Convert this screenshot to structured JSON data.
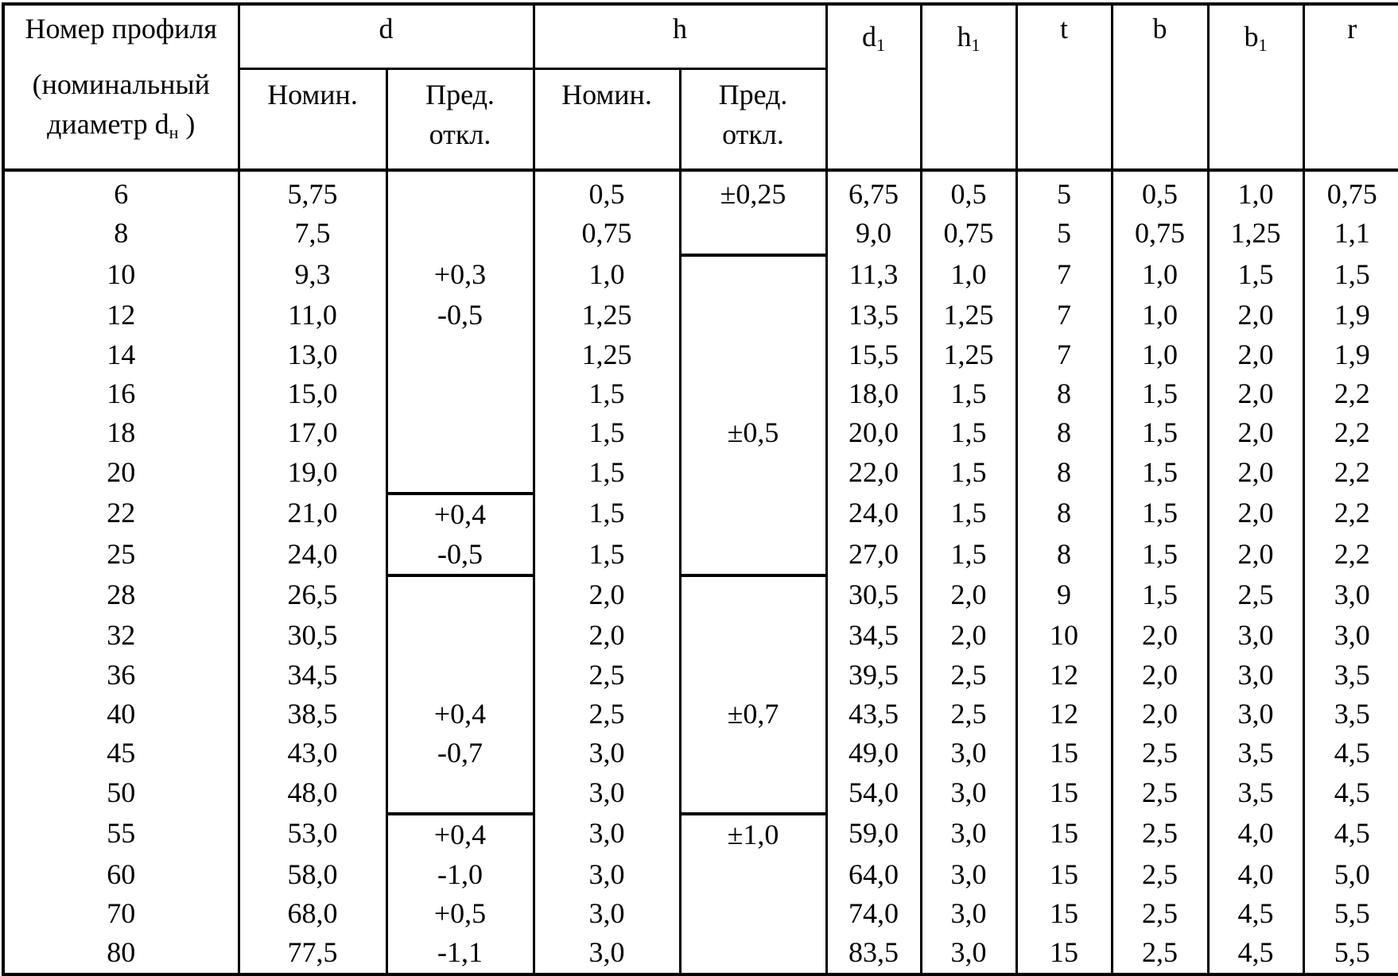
{
  "header": {
    "profile_line1": "Номер профиля",
    "profile_line2": "(номинальный",
    "profile_line3": "диаметр d",
    "profile_sub": "н",
    "profile_close": ")",
    "d": "d",
    "h": "h",
    "d1": "d",
    "h1": "h",
    "t": "t",
    "b": "b",
    "b1": "b",
    "r": "r",
    "sub1": "1",
    "nomin": "Номин.",
    "pred_line1": "Пред.",
    "pred_line2": "откл."
  },
  "rows": [
    [
      "6",
      "5,75",
      "",
      "0,5",
      "±0,25",
      "6,75",
      "0,5",
      "5",
      "0,5",
      "1,0",
      "0,75"
    ],
    [
      "8",
      "7,5",
      "",
      "0,75",
      "",
      "9,0",
      "0,75",
      "5",
      "0,75",
      "1,25",
      "1,1"
    ],
    [
      "10",
      "9,3",
      "+0,3",
      "1,0",
      "",
      "11,3",
      "1,0",
      "7",
      "1,0",
      "1,5",
      "1,5"
    ],
    [
      "12",
      "11,0",
      "-0,5",
      "1,25",
      "",
      "13,5",
      "1,25",
      "7",
      "1,0",
      "2,0",
      "1,9"
    ],
    [
      "14",
      "13,0",
      "",
      "1,25",
      "",
      "15,5",
      "1,25",
      "7",
      "1,0",
      "2,0",
      "1,9"
    ],
    [
      "16",
      "15,0",
      "",
      "1,5",
      "",
      "18,0",
      "1,5",
      "8",
      "1,5",
      "2,0",
      "2,2"
    ],
    [
      "18",
      "17,0",
      "",
      "1,5",
      "±0,5",
      "20,0",
      "1,5",
      "8",
      "1,5",
      "2,0",
      "2,2"
    ],
    [
      "20",
      "19,0",
      "",
      "1,5",
      "",
      "22,0",
      "1,5",
      "8",
      "1,5",
      "2,0",
      "2,2"
    ],
    [
      "22",
      "21,0",
      "+0,4",
      "1,5",
      "",
      "24,0",
      "1,5",
      "8",
      "1,5",
      "2,0",
      "2,2"
    ],
    [
      "25",
      "24,0",
      "-0,5",
      "1,5",
      "",
      "27,0",
      "1,5",
      "8",
      "1,5",
      "2,0",
      "2,2"
    ],
    [
      "28",
      "26,5",
      "",
      "2,0",
      "",
      "30,5",
      "2,0",
      "9",
      "1,5",
      "2,5",
      "3,0"
    ],
    [
      "32",
      "30,5",
      "",
      "2,0",
      "",
      "34,5",
      "2,0",
      "10",
      "2,0",
      "3,0",
      "3,0"
    ],
    [
      "36",
      "34,5",
      "",
      "2,5",
      "",
      "39,5",
      "2,5",
      "12",
      "2,0",
      "3,0",
      "3,5"
    ],
    [
      "40",
      "38,5",
      "+0,4",
      "2,5",
      "±0,7",
      "43,5",
      "2,5",
      "12",
      "2,0",
      "3,0",
      "3,5"
    ],
    [
      "45",
      "43,0",
      "-0,7",
      "3,0",
      "",
      "49,0",
      "3,0",
      "15",
      "2,5",
      "3,5",
      "4,5"
    ],
    [
      "50",
      "48,0",
      "",
      "3,0",
      "",
      "54,0",
      "3,0",
      "15",
      "2,5",
      "3,5",
      "4,5"
    ],
    [
      "55",
      "53,0",
      "+0,4",
      "3,0",
      "±1,0",
      "59,0",
      "3,0",
      "15",
      "2,5",
      "4,0",
      "4,5"
    ],
    [
      "60",
      "58,0",
      "-1,0",
      "3,0",
      "",
      "64,0",
      "3,0",
      "15",
      "2,5",
      "4,0",
      "5,0"
    ],
    [
      "70",
      "68,0",
      "+0,5",
      "3,0",
      "",
      "74,0",
      "3,0",
      "15",
      "2,5",
      "4,5",
      "5,5"
    ],
    [
      "80",
      "77,5",
      "-1,1",
      "3,0",
      "",
      "83,5",
      "3,0",
      "15",
      "2,5",
      "4,5",
      "5,5"
    ]
  ]
}
